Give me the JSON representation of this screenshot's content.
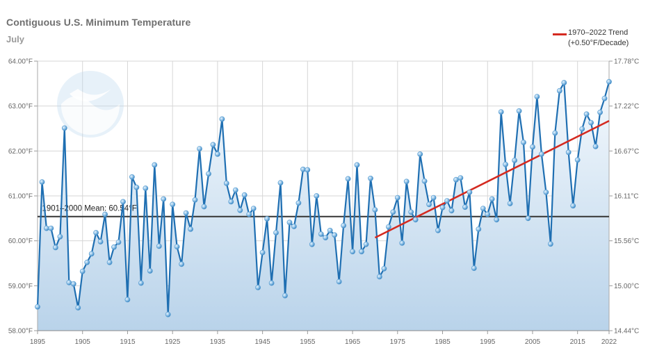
{
  "chart_data": {
    "type": "line",
    "title": "Contiguous U.S. Minimum Temperature",
    "subtitle": "July",
    "xlim": [
      1895,
      2022
    ],
    "ylim": [
      58.0,
      64.0
    ],
    "x_ticks": [
      "1895",
      "1905",
      "1915",
      "1925",
      "1935",
      "1945",
      "1955",
      "1965",
      "1975",
      "1985",
      "1995",
      "2005",
      "2015",
      "2022"
    ],
    "y_ticks_left": [
      "58.00°F",
      "59.00°F",
      "60.00°F",
      "61.00°F",
      "62.00°F",
      "63.00°F",
      "64.00°F"
    ],
    "y_ticks_right": [
      "14.44°C",
      "15.00°C",
      "15.56°C",
      "16.11°C",
      "16.67°C",
      "17.22°C",
      "17.78°C"
    ],
    "grid": true,
    "legend_position": "top-right",
    "series": [
      {
        "x": [
          1895,
          1896,
          1897,
          1898,
          1899,
          1900,
          1901,
          1902,
          1903,
          1904,
          1905,
          1906,
          1907,
          1908,
          1909,
          1910,
          1911,
          1912,
          1913,
          1914,
          1915,
          1916,
          1917,
          1918,
          1919,
          1920,
          1921,
          1922,
          1923,
          1924,
          1925,
          1926,
          1927,
          1928,
          1929,
          1930,
          1931,
          1932,
          1933,
          1934,
          1935,
          1936,
          1937,
          1938,
          1939,
          1940,
          1941,
          1942,
          1943,
          1944,
          1945,
          1946,
          1947,
          1948,
          1949,
          1950,
          1951,
          1952,
          1953,
          1954,
          1955,
          1956,
          1957,
          1958,
          1959,
          1960,
          1961,
          1962,
          1963,
          1964,
          1965,
          1966,
          1967,
          1968,
          1969,
          1970,
          1971,
          1972,
          1973,
          1974,
          1975,
          1976,
          1977,
          1978,
          1979,
          1980,
          1981,
          1982,
          1983,
          1984,
          1985,
          1986,
          1987,
          1988,
          1989,
          1990,
          1991,
          1992,
          1993,
          1994,
          1995,
          1996,
          1997,
          1998,
          1999,
          2000,
          2001,
          2002,
          2003,
          2004,
          2005,
          2006,
          2007,
          2008,
          2009,
          2010,
          2011,
          2012,
          2013,
          2014,
          2015,
          2016,
          2017,
          2018,
          2019,
          2020,
          2021,
          2022
        ],
        "values": [
          58.53,
          61.31,
          60.28,
          60.28,
          59.85,
          60.09,
          62.51,
          59.07,
          59.04,
          58.51,
          59.32,
          59.52,
          59.71,
          60.18,
          59.98,
          60.59,
          59.52,
          59.86,
          59.97,
          60.87,
          58.69,
          61.42,
          61.19,
          59.06,
          61.17,
          59.33,
          61.69,
          59.88,
          60.93,
          58.36,
          60.81,
          59.87,
          59.48,
          60.62,
          60.26,
          60.91,
          62.05,
          60.76,
          61.49,
          62.14,
          61.93,
          62.71,
          61.28,
          60.87,
          61.13,
          60.68,
          61.02,
          60.59,
          60.72,
          58.96,
          59.74,
          60.49,
          59.06,
          60.18,
          61.29,
          58.78,
          60.41,
          60.32,
          60.84,
          61.59,
          61.58,
          59.92,
          61.0,
          60.15,
          60.07,
          60.23,
          60.13,
          59.09,
          60.34,
          61.38,
          59.76,
          61.69,
          59.76,
          59.92,
          61.39,
          60.69,
          59.2,
          59.38,
          60.31,
          60.64,
          60.96,
          59.95,
          61.32,
          60.64,
          60.47,
          61.93,
          61.33,
          60.81,
          60.96,
          60.23,
          60.74,
          60.89,
          60.67,
          61.36,
          61.4,
          60.75,
          61.08,
          59.39,
          60.26,
          60.72,
          60.59,
          60.93,
          60.47,
          62.87,
          61.7,
          60.83,
          61.79,
          62.89,
          62.19,
          60.5,
          62.09,
          63.21,
          61.93,
          61.08,
          59.93,
          62.4,
          63.34,
          63.52,
          61.97,
          60.78,
          61.8,
          62.49,
          62.82,
          62.63,
          62.1,
          62.86,
          63.17,
          63.54
        ]
      },
      {
        "name": "1970–2022 Trend",
        "type": "trend",
        "x": [
          1970,
          2022
        ],
        "values": [
          60.07,
          62.67
        ]
      }
    ],
    "reference_line": {
      "label": "1901–2000 Mean: 60.54°F",
      "value": 60.54
    },
    "legend": {
      "line1": "1970–2022 Trend",
      "line2": "(+0.50°F/Decade)"
    },
    "colors": {
      "line": "#1f6fb2",
      "trend": "#d42a20",
      "mean": "#333333",
      "fill_top": "#f4f9fd",
      "fill_bottom": "#b9d3ea"
    }
  }
}
